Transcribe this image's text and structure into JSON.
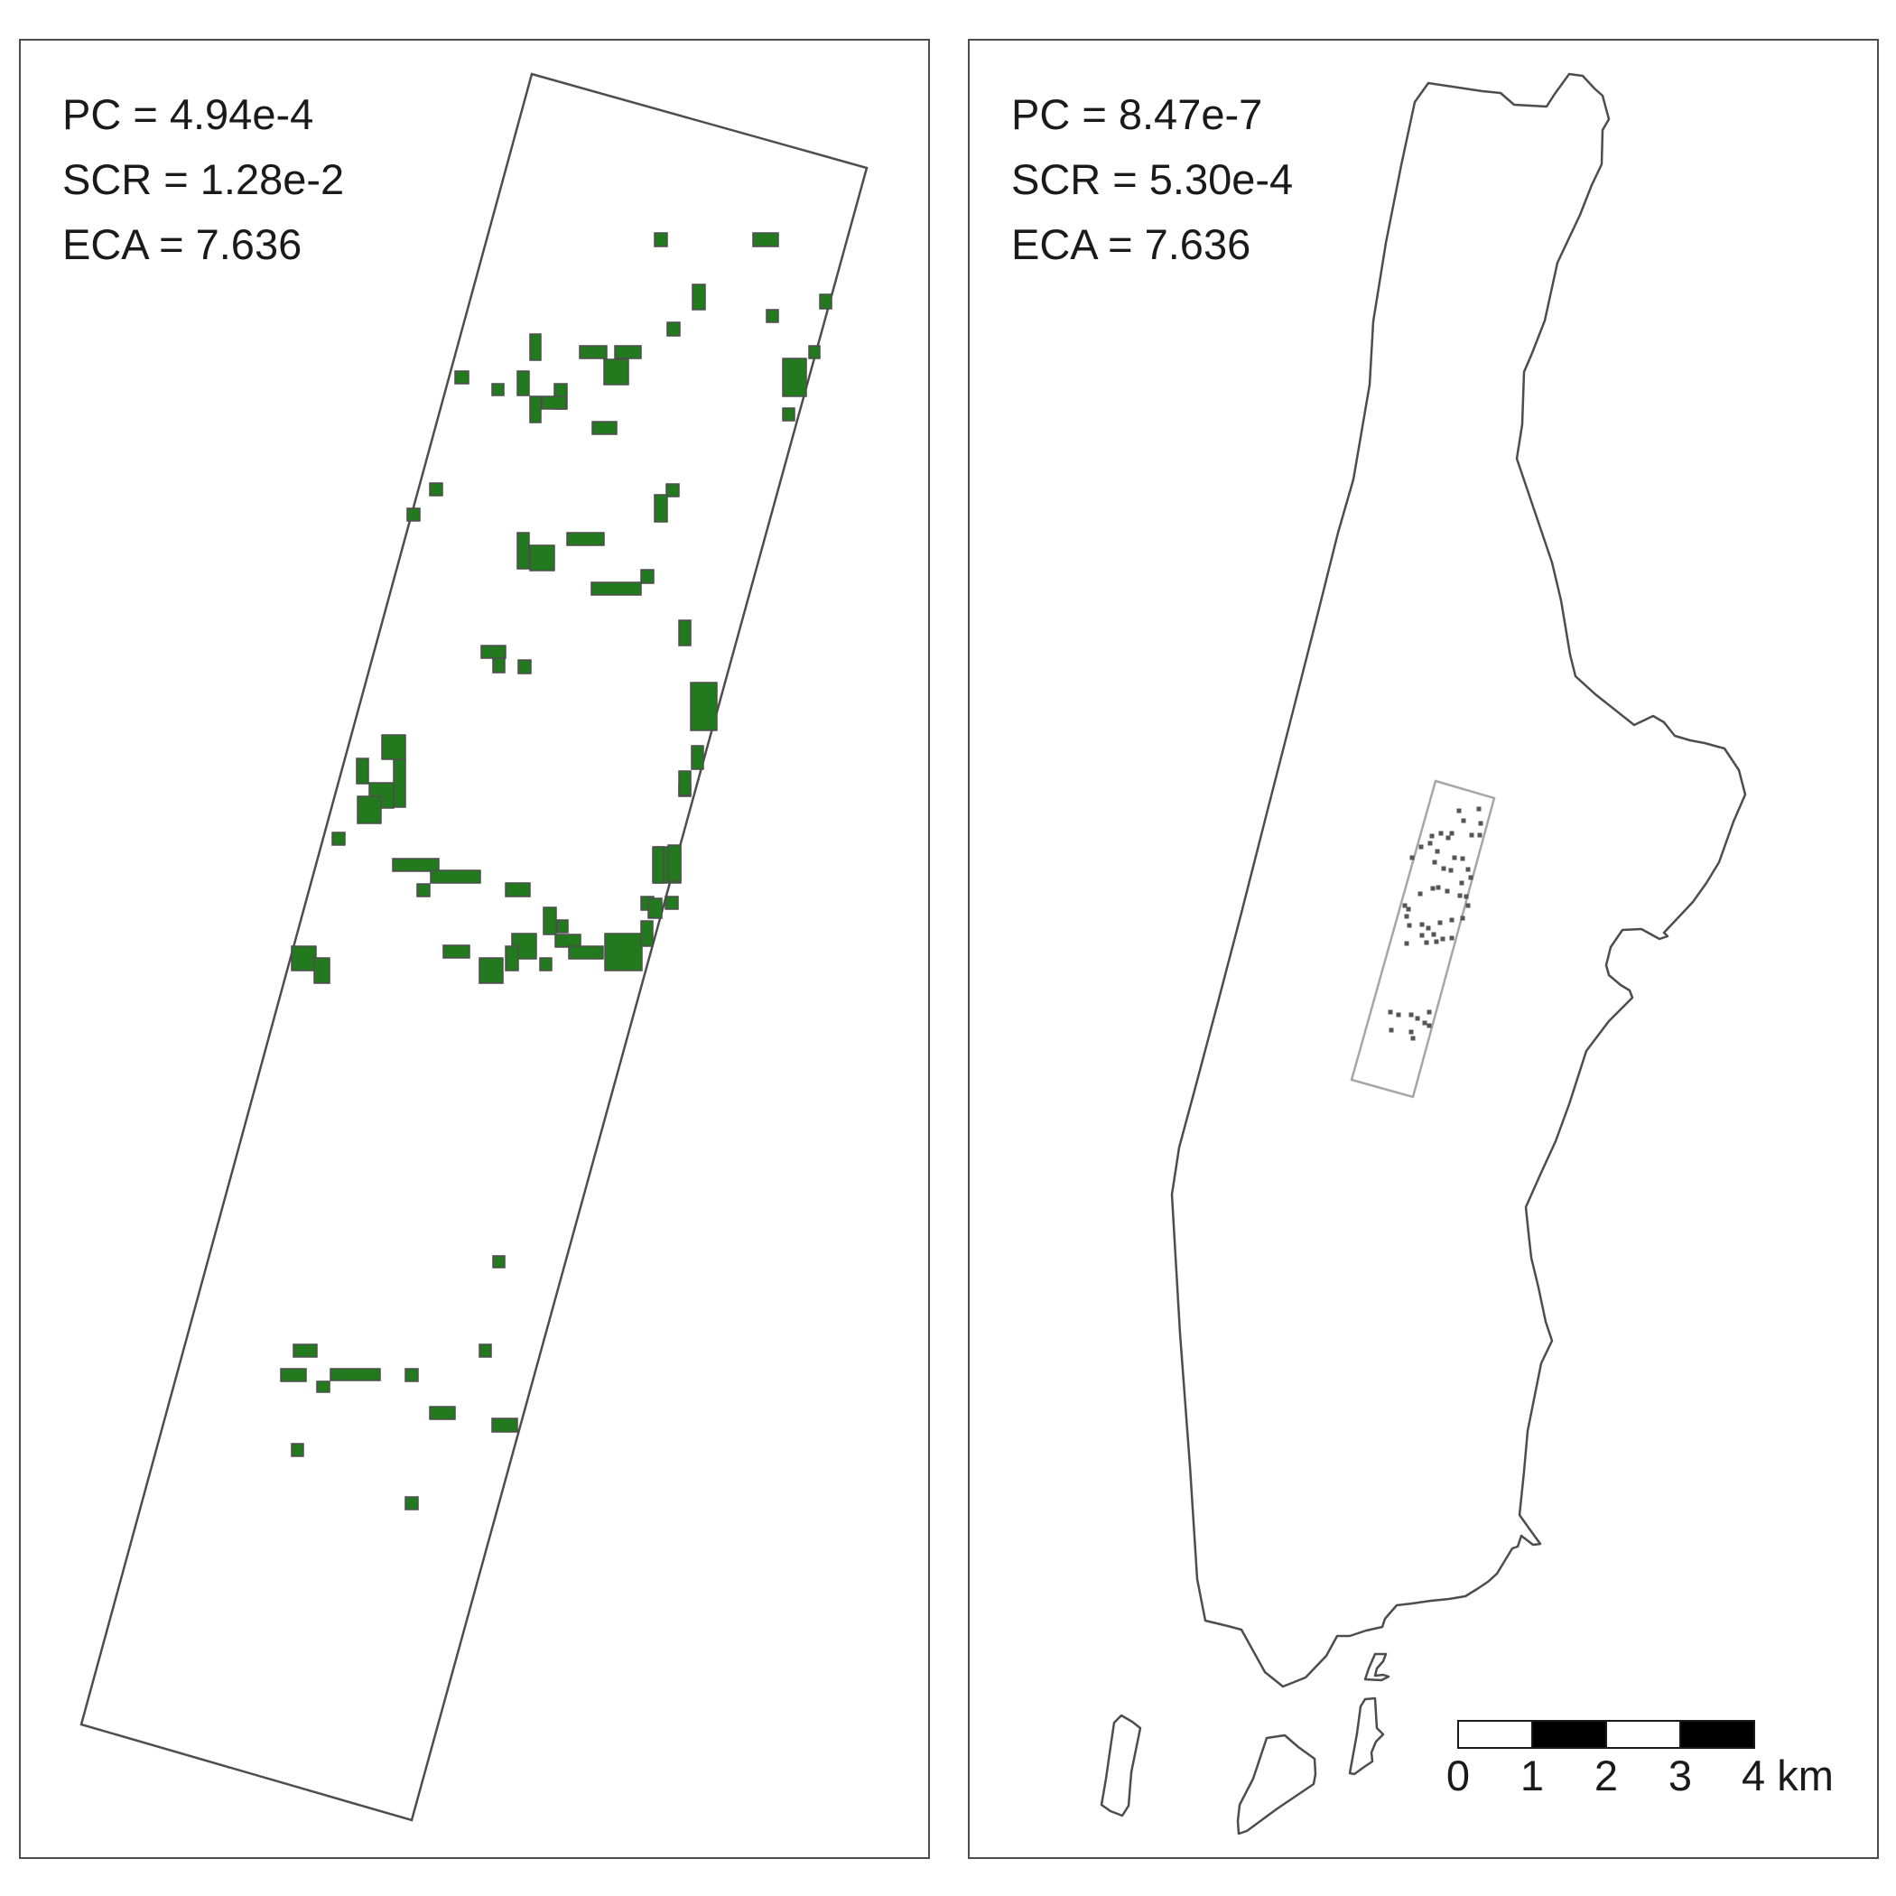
{
  "left_panel": {
    "metrics": [
      "PC = 4.94e-4",
      "SCR = 1.28e-2",
      "ECA = 7.636"
    ],
    "patch_color": "#237a1e",
    "outline_color": "#4d4d4d"
  },
  "right_panel": {
    "metrics": [
      "PC = 8.47e-7",
      "SCR = 5.30e-4",
      "ECA = 7.636"
    ],
    "inset_outline_color": "#a6a6a6",
    "patch_color": "#555555",
    "outline_color": "#4d4d4d"
  },
  "scale_bar": {
    "labels": [
      "0",
      "1",
      "2",
      "3",
      "4 km"
    ]
  }
}
